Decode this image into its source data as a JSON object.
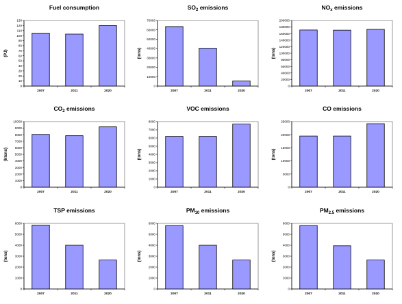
{
  "chart_data": [
    {
      "type": "bar",
      "title": "Fuel consumption",
      "title_main": "Fuel consumption",
      "title_sub": "",
      "title_tail": "",
      "ylabel": "(PJ)",
      "categories": [
        "2007",
        "2011",
        "2020"
      ],
      "values": [
        105,
        103,
        120
      ],
      "ylim": [
        0,
        130
      ],
      "ytick_step": 10,
      "bar_color": "#9999ff",
      "grid": false,
      "legend": "none"
    },
    {
      "type": "bar",
      "title": "SO2 emissions",
      "title_main": "SO",
      "title_sub": "2",
      "title_tail": " emissions",
      "ylabel": "(tons)",
      "categories": [
        "2007",
        "2011",
        "2020"
      ],
      "values": [
        63500,
        40500,
        5500
      ],
      "ylim": [
        0,
        70000
      ],
      "ytick_step": 10000,
      "bar_color": "#9999ff",
      "grid": false,
      "legend": "none"
    },
    {
      "type": "bar",
      "title": "NOx emissions",
      "title_main": "NO",
      "title_sub": "x",
      "title_tail": " emissions",
      "ylabel": "(tons)",
      "categories": [
        "2007",
        "2011",
        "2020"
      ],
      "values": [
        171000,
        170500,
        173000
      ],
      "ylim": [
        0,
        200000
      ],
      "ytick_step": 20000,
      "bar_color": "#9999ff",
      "grid": false,
      "legend": "none"
    },
    {
      "type": "bar",
      "title": "CO2 emissions",
      "title_main": "CO",
      "title_sub": "2",
      "title_tail": " emissions",
      "ylabel": "(ktons)",
      "categories": [
        "2007",
        "2011",
        "2020"
      ],
      "values": [
        8050,
        7850,
        9200
      ],
      "ylim": [
        0,
        10000
      ],
      "ytick_step": 1000,
      "bar_color": "#9999ff",
      "grid": false,
      "legend": "none"
    },
    {
      "type": "bar",
      "title": "VOC emissions",
      "title_main": "VOC emissions",
      "title_sub": "",
      "title_tail": "",
      "ylabel": "(tons)",
      "categories": [
        "2007",
        "2011",
        "2020"
      ],
      "values": [
        6200,
        6200,
        7700
      ],
      "ylim": [
        0,
        8000
      ],
      "ytick_step": 1000,
      "bar_color": "#9999ff",
      "grid": false,
      "legend": "none"
    },
    {
      "type": "bar",
      "title": "CO emissions",
      "title_main": "CO emissions",
      "title_sub": "",
      "title_tail": "",
      "ylabel": "(tons)",
      "categories": [
        "2007",
        "2011",
        "2020"
      ],
      "values": [
        19500,
        19500,
        24200
      ],
      "ylim": [
        0,
        25000
      ],
      "ytick_step": 5000,
      "bar_color": "#9999ff",
      "grid": false,
      "legend": "none"
    },
    {
      "type": "bar",
      "title": "TSP emissions",
      "title_main": "TSP emissions",
      "title_sub": "",
      "title_tail": "",
      "ylabel": "(tons)",
      "categories": [
        "2007",
        "2011",
        "2020"
      ],
      "values": [
        5850,
        4000,
        2650
      ],
      "ylim": [
        0,
        6000
      ],
      "ytick_step": 1000,
      "bar_color": "#9999ff",
      "grid": false,
      "legend": "none"
    },
    {
      "type": "bar",
      "title": "PM10 emissions",
      "title_main": "PM",
      "title_sub": "10",
      "title_tail": " emissions",
      "ylabel": "(tons)",
      "categories": [
        "2007",
        "2011",
        "2020"
      ],
      "values": [
        5800,
        4000,
        2650
      ],
      "ylim": [
        0,
        6000
      ],
      "ytick_step": 1000,
      "bar_color": "#9999ff",
      "grid": false,
      "legend": "none"
    },
    {
      "type": "bar",
      "title": "PM2.5 emissions",
      "title_main": "PM",
      "title_sub": "2.5",
      "title_tail": " emissions",
      "ylabel": "(tons)",
      "categories": [
        "2007",
        "2011",
        "2020"
      ],
      "values": [
        5800,
        3950,
        2650
      ],
      "ylim": [
        0,
        6000
      ],
      "ytick_step": 1000,
      "bar_color": "#9999ff",
      "grid": false,
      "legend": "none"
    }
  ]
}
